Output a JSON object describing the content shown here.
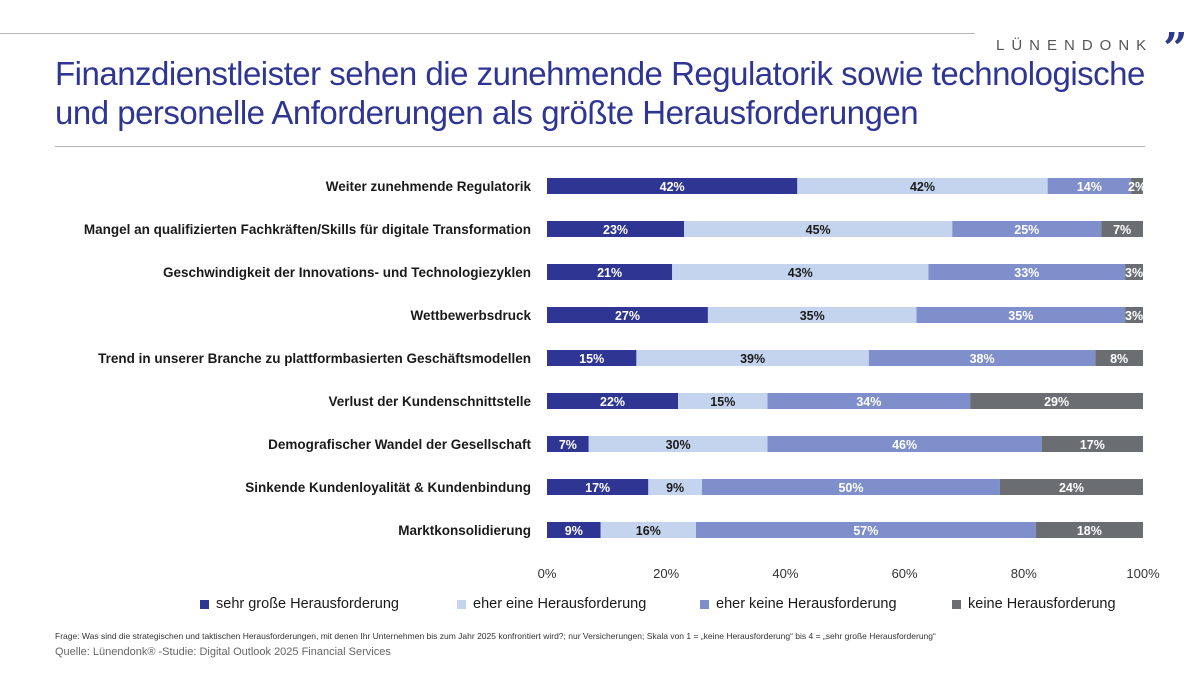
{
  "brand": {
    "name": "LÜNENDONK",
    "mark": "”"
  },
  "title": {
    "line1": "Finanzdienstleister sehen die zunehmende Regulatorik sowie technologische",
    "line2": "und personelle Anforderungen als größte Herausforderungen"
  },
  "chart_data": {
    "type": "bar",
    "orientation": "horizontal",
    "stacked": true,
    "categories": [
      "Weiter zunehmende Regulatorik",
      "Mangel an qualifizierten Fachkräften/Skills für digitale Transformation",
      "Geschwindigkeit der Innovations- und Technologiezyklen",
      "Wettbewerbsdruck",
      "Trend in unserer Branche zu plattformbasierten Geschäftsmodellen",
      "Verlust der Kundenschnittstelle",
      "Demografischer Wandel der Gesellschaft",
      "Sinkende Kundenloyalität & Kundenbindung",
      "Marktkonsolidierung"
    ],
    "series": [
      {
        "name": "sehr große Herausforderung",
        "color": "#2e3592",
        "label_color": "#ffffff",
        "values": [
          42,
          23,
          21,
          27,
          15,
          22,
          7,
          17,
          9
        ]
      },
      {
        "name": "eher eine Herausforderung",
        "color": "#c5d4ee",
        "label_color": "#1a1a1a",
        "values": [
          42,
          45,
          43,
          35,
          39,
          15,
          30,
          9,
          16
        ]
      },
      {
        "name": "eher keine Herausforderung",
        "color": "#7f8fcb",
        "label_color": "#ffffff",
        "values": [
          14,
          25,
          33,
          35,
          38,
          34,
          46,
          50,
          57
        ]
      },
      {
        "name": "keine Herausforderung",
        "color": "#6a6e72",
        "label_color": "#ffffff",
        "values": [
          2,
          7,
          3,
          3,
          8,
          29,
          17,
          24,
          18
        ]
      }
    ],
    "xticks": [
      "0%",
      "20%",
      "40%",
      "60%",
      "80%",
      "100%"
    ],
    "xlim": [
      0,
      100
    ],
    "legend_position": "bottom",
    "grid": false
  },
  "footnote": "Frage: Was sind die strategischen und taktischen Herausforderungen, mit denen Ihr Unternehmen bis zum Jahr 2025 konfrontiert wird?; nur Versicherungen; Skala von 1 = „keine Herausforderung“ bis 4 = „sehr große Herausforderung“",
  "source": "Quelle: Lünendonk® -Studie: Digital Outlook 2025 Financial Services"
}
